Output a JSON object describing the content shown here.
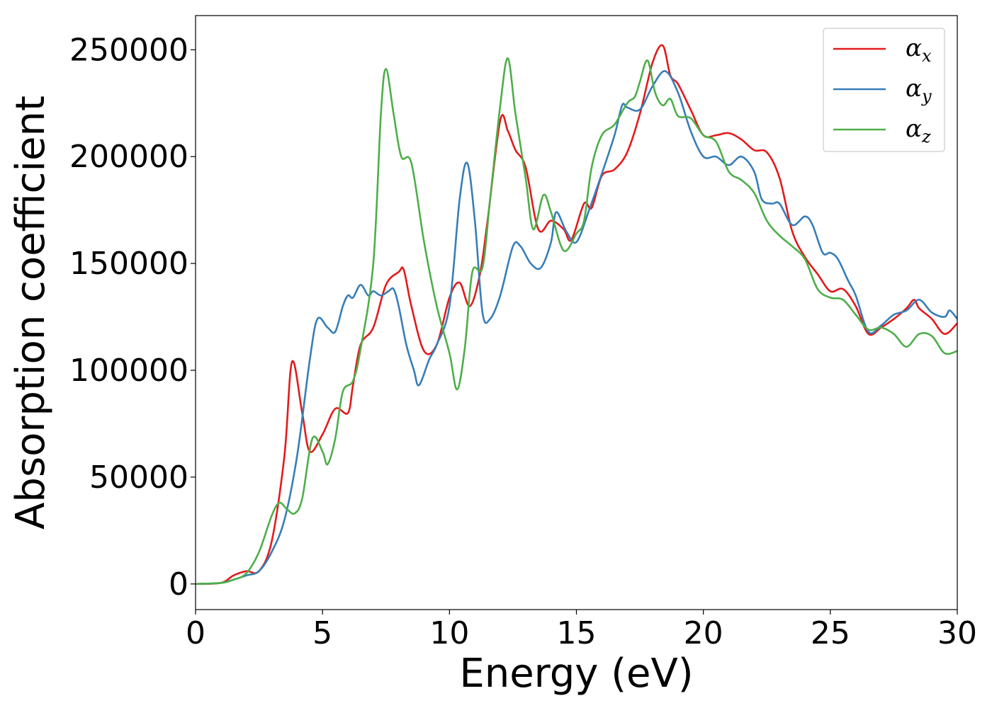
{
  "chart_data": {
    "type": "line",
    "title": "",
    "xlabel": "Energy (eV)",
    "ylabel": "Absorption coefficient",
    "xlim": [
      0,
      30
    ],
    "ylim": [
      -12000,
      266000
    ],
    "xticks": [
      0,
      5,
      10,
      15,
      20,
      25,
      30
    ],
    "xtick_labels": [
      "0",
      "5",
      "10",
      "15",
      "20",
      "25",
      "30"
    ],
    "yticks": [
      0,
      50000,
      100000,
      150000,
      200000,
      250000
    ],
    "ytick_labels": [
      "0",
      "50000",
      "100000",
      "150000",
      "200000",
      "250000"
    ],
    "grid": false,
    "legend_position": "top-right",
    "series": [
      {
        "name": "αx",
        "legend_base": "α",
        "legend_sub": "x",
        "color": "#e41a1c",
        "points": [
          [
            0,
            0
          ],
          [
            1,
            500
          ],
          [
            1.5,
            4000
          ],
          [
            2,
            6000
          ],
          [
            2.5,
            6000
          ],
          [
            3,
            20000
          ],
          [
            3.5,
            60000
          ],
          [
            3.8,
            104000
          ],
          [
            4.2,
            80000
          ],
          [
            4.5,
            62000
          ],
          [
            5,
            70000
          ],
          [
            5.5,
            82000
          ],
          [
            6,
            80000
          ],
          [
            6.2,
            93000
          ],
          [
            6.5,
            112000
          ],
          [
            7,
            120000
          ],
          [
            7.5,
            140000
          ],
          [
            8,
            146000
          ],
          [
            8.2,
            147000
          ],
          [
            8.5,
            130000
          ],
          [
            9,
            109000
          ],
          [
            9.5,
            112000
          ],
          [
            10,
            134000
          ],
          [
            10.4,
            141000
          ],
          [
            10.8,
            130000
          ],
          [
            11.2,
            145000
          ],
          [
            11.5,
            170000
          ],
          [
            12,
            217000
          ],
          [
            12.3,
            212000
          ],
          [
            12.6,
            203000
          ],
          [
            13,
            195000
          ],
          [
            13.5,
            166000
          ],
          [
            14,
            170000
          ],
          [
            14.5,
            166000
          ],
          [
            14.8,
            161000
          ],
          [
            15.3,
            178000
          ],
          [
            15.6,
            176000
          ],
          [
            16,
            191000
          ],
          [
            16.5,
            194000
          ],
          [
            17,
            202000
          ],
          [
            17.5,
            220000
          ],
          [
            18,
            244000
          ],
          [
            18.4,
            252000
          ],
          [
            18.7,
            238000
          ],
          [
            19,
            234000
          ],
          [
            19.5,
            222000
          ],
          [
            20,
            210000
          ],
          [
            20.5,
            210000
          ],
          [
            21,
            211000
          ],
          [
            21.5,
            208000
          ],
          [
            22,
            203000
          ],
          [
            22.5,
            202000
          ],
          [
            23,
            190000
          ],
          [
            23.5,
            165000
          ],
          [
            24,
            153000
          ],
          [
            24.5,
            145000
          ],
          [
            25,
            137000
          ],
          [
            25.5,
            138000
          ],
          [
            26,
            130000
          ],
          [
            26.5,
            117000
          ],
          [
            27,
            120000
          ],
          [
            27.5,
            124000
          ],
          [
            28,
            129000
          ],
          [
            28.3,
            133000
          ],
          [
            28.5,
            129000
          ],
          [
            29,
            124000
          ],
          [
            29.5,
            117000
          ],
          [
            30,
            122000
          ]
        ]
      },
      {
        "name": "αy",
        "legend_base": "α",
        "legend_sub": "y",
        "color": "#377eb8",
        "points": [
          [
            0,
            0
          ],
          [
            1,
            500
          ],
          [
            1.5,
            2000
          ],
          [
            2,
            4000
          ],
          [
            2.5,
            6000
          ],
          [
            3,
            15000
          ],
          [
            3.5,
            30000
          ],
          [
            4,
            60000
          ],
          [
            4.5,
            105000
          ],
          [
            4.8,
            124000
          ],
          [
            5.2,
            120000
          ],
          [
            5.5,
            118000
          ],
          [
            5.8,
            130000
          ],
          [
            6,
            135000
          ],
          [
            6.2,
            134000
          ],
          [
            6.5,
            140000
          ],
          [
            6.8,
            135000
          ],
          [
            7,
            137000
          ],
          [
            7.3,
            135000
          ],
          [
            7.6,
            137000
          ],
          [
            7.8,
            138000
          ],
          [
            8,
            130000
          ],
          [
            8.3,
            112000
          ],
          [
            8.6,
            100000
          ],
          [
            8.8,
            93000
          ],
          [
            9.2,
            105000
          ],
          [
            9.5,
            112000
          ],
          [
            10,
            130000
          ],
          [
            10.4,
            180000
          ],
          [
            10.7,
            197000
          ],
          [
            11,
            170000
          ],
          [
            11.3,
            127000
          ],
          [
            11.6,
            124000
          ],
          [
            12,
            135000
          ],
          [
            12.5,
            158000
          ],
          [
            12.8,
            158000
          ],
          [
            13.2,
            150000
          ],
          [
            13.6,
            148000
          ],
          [
            14,
            160000
          ],
          [
            14.2,
            174000
          ],
          [
            14.6,
            165000
          ],
          [
            15,
            160000
          ],
          [
            15.5,
            175000
          ],
          [
            16,
            192000
          ],
          [
            16.5,
            210000
          ],
          [
            16.8,
            224000
          ],
          [
            17,
            223000
          ],
          [
            17.5,
            222000
          ],
          [
            18,
            233000
          ],
          [
            18.5,
            240000
          ],
          [
            19,
            230000
          ],
          [
            19.5,
            212000
          ],
          [
            20,
            200000
          ],
          [
            20.5,
            200000
          ],
          [
            21,
            196000
          ],
          [
            21.5,
            200000
          ],
          [
            22,
            193000
          ],
          [
            22.3,
            180000
          ],
          [
            22.7,
            178000
          ],
          [
            23,
            178000
          ],
          [
            23.5,
            168000
          ],
          [
            24,
            172000
          ],
          [
            24.3,
            168000
          ],
          [
            24.7,
            155000
          ],
          [
            25,
            155000
          ],
          [
            25.3,
            152000
          ],
          [
            25.7,
            142000
          ],
          [
            26,
            135000
          ],
          [
            26.5,
            118000
          ],
          [
            27,
            121000
          ],
          [
            27.5,
            126000
          ],
          [
            28,
            128000
          ],
          [
            28.5,
            133000
          ],
          [
            29,
            127000
          ],
          [
            29.5,
            125000
          ],
          [
            29.7,
            128000
          ],
          [
            30,
            124000
          ]
        ]
      },
      {
        "name": "αz",
        "legend_base": "α",
        "legend_sub": "z",
        "color": "#4daf4a",
        "points": [
          [
            0,
            0
          ],
          [
            1,
            500
          ],
          [
            1.5,
            2000
          ],
          [
            2,
            5000
          ],
          [
            2.5,
            15000
          ],
          [
            3,
            32000
          ],
          [
            3.3,
            38000
          ],
          [
            3.6,
            35000
          ],
          [
            3.9,
            33000
          ],
          [
            4.2,
            40000
          ],
          [
            4.6,
            68000
          ],
          [
            5,
            62000
          ],
          [
            5.2,
            56000
          ],
          [
            5.5,
            68000
          ],
          [
            5.8,
            90000
          ],
          [
            6.2,
            95000
          ],
          [
            6.5,
            110000
          ],
          [
            7,
            150000
          ],
          [
            7.3,
            220000
          ],
          [
            7.5,
            241000
          ],
          [
            7.8,
            220000
          ],
          [
            8.1,
            200000
          ],
          [
            8.5,
            197000
          ],
          [
            9,
            160000
          ],
          [
            9.5,
            130000
          ],
          [
            10,
            108000
          ],
          [
            10.3,
            91000
          ],
          [
            10.6,
            110000
          ],
          [
            10.9,
            146000
          ],
          [
            11.3,
            148000
          ],
          [
            11.6,
            180000
          ],
          [
            12,
            224000
          ],
          [
            12.3,
            246000
          ],
          [
            12.6,
            220000
          ],
          [
            13,
            190000
          ],
          [
            13.3,
            166000
          ],
          [
            13.7,
            182000
          ],
          [
            14,
            174000
          ],
          [
            14.5,
            156000
          ],
          [
            15,
            164000
          ],
          [
            15.3,
            170000
          ],
          [
            15.6,
            195000
          ],
          [
            16,
            210000
          ],
          [
            16.5,
            215000
          ],
          [
            17,
            225000
          ],
          [
            17.3,
            228000
          ],
          [
            17.5,
            235000
          ],
          [
            17.8,
            245000
          ],
          [
            18.1,
            230000
          ],
          [
            18.4,
            224000
          ],
          [
            18.7,
            227000
          ],
          [
            19,
            219000
          ],
          [
            19.5,
            218000
          ],
          [
            20,
            210000
          ],
          [
            20.5,
            207000
          ],
          [
            21,
            193000
          ],
          [
            21.5,
            189000
          ],
          [
            22,
            183000
          ],
          [
            22.5,
            170000
          ],
          [
            23,
            163000
          ],
          [
            23.5,
            158000
          ],
          [
            24,
            152000
          ],
          [
            24.5,
            138000
          ],
          [
            25,
            134000
          ],
          [
            25.5,
            133000
          ],
          [
            26,
            126000
          ],
          [
            26.5,
            119000
          ],
          [
            27,
            120000
          ],
          [
            27.5,
            117000
          ],
          [
            28,
            111000
          ],
          [
            28.5,
            117000
          ],
          [
            29,
            116000
          ],
          [
            29.5,
            108000
          ],
          [
            30,
            109000
          ]
        ]
      }
    ]
  }
}
